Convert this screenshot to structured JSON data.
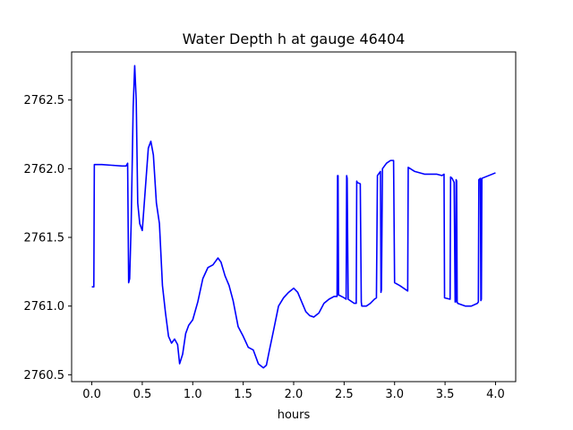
{
  "chart_data": {
    "type": "line",
    "title": "Water Depth h at gauge 46404",
    "xlabel": "hours",
    "ylabel": "",
    "xlim": [
      -0.2,
      4.2
    ],
    "ylim": [
      2760.45,
      2762.85
    ],
    "grid": false,
    "xticks": [
      0.0,
      0.5,
      1.0,
      1.5,
      2.0,
      2.5,
      3.0,
      3.5,
      4.0
    ],
    "xtick_labels": [
      "0.0",
      "0.5",
      "1.0",
      "1.5",
      "2.0",
      "2.5",
      "3.0",
      "3.5",
      "4.0"
    ],
    "yticks": [
      2760.5,
      2761.0,
      2761.5,
      2762.0,
      2762.5
    ],
    "ytick_labels": [
      "2760.5",
      "2761.0",
      "2761.5",
      "2762.0",
      "2762.5"
    ],
    "series": [
      {
        "color": "#0000ff",
        "x": [
          0.0,
          0.02,
          0.025,
          0.03,
          0.1,
          0.2,
          0.3,
          0.34,
          0.355,
          0.365,
          0.375,
          0.39,
          0.41,
          0.425,
          0.44,
          0.455,
          0.475,
          0.5,
          0.53,
          0.56,
          0.585,
          0.61,
          0.64,
          0.67,
          0.7,
          0.73,
          0.76,
          0.79,
          0.82,
          0.85,
          0.87,
          0.9,
          0.93,
          0.96,
          1.0,
          1.05,
          1.1,
          1.15,
          1.2,
          1.25,
          1.28,
          1.32,
          1.36,
          1.4,
          1.45,
          1.5,
          1.55,
          1.6,
          1.65,
          1.7,
          1.73,
          1.76,
          1.8,
          1.85,
          1.9,
          1.95,
          2.0,
          2.04,
          2.08,
          2.12,
          2.16,
          2.2,
          2.25,
          2.3,
          2.35,
          2.4,
          2.43,
          2.435,
          2.44,
          2.445,
          2.45,
          2.5,
          2.52,
          2.525,
          2.53,
          2.54,
          2.6,
          2.62,
          2.625,
          2.63,
          2.66,
          2.67,
          2.675,
          2.72,
          2.76,
          2.8,
          2.82,
          2.83,
          2.84,
          2.86,
          2.865,
          2.87,
          2.88,
          2.92,
          2.96,
          2.99,
          3.0,
          3.05,
          3.13,
          3.135,
          3.2,
          3.3,
          3.42,
          3.47,
          3.49,
          3.495,
          3.55,
          3.555,
          3.57,
          3.59,
          3.6,
          3.605,
          3.61,
          3.615,
          3.62,
          3.625,
          3.7,
          3.76,
          3.82,
          3.83,
          3.835,
          3.85,
          3.855,
          3.86,
          3.865,
          4.0
        ],
        "y": [
          2761.14,
          2761.14,
          2762.03,
          2762.03,
          2762.03,
          2762.025,
          2762.02,
          2762.02,
          2762.04,
          2761.17,
          2761.2,
          2761.6,
          2762.45,
          2762.75,
          2762.5,
          2761.75,
          2761.6,
          2761.55,
          2761.85,
          2762.15,
          2762.2,
          2762.1,
          2761.75,
          2761.6,
          2761.15,
          2760.95,
          2760.78,
          2760.73,
          2760.76,
          2760.72,
          2760.58,
          2760.65,
          2760.8,
          2760.86,
          2760.9,
          2761.03,
          2761.2,
          2761.28,
          2761.3,
          2761.35,
          2761.32,
          2761.22,
          2761.15,
          2761.04,
          2760.85,
          2760.78,
          2760.7,
          2760.68,
          2760.58,
          2760.55,
          2760.57,
          2760.68,
          2760.82,
          2761.0,
          2761.06,
          2761.1,
          2761.13,
          2761.1,
          2761.03,
          2760.96,
          2760.93,
          2760.92,
          2760.95,
          2761.02,
          2761.05,
          2761.07,
          2761.07,
          2761.95,
          2761.95,
          2761.08,
          2761.08,
          2761.06,
          2761.05,
          2761.95,
          2761.93,
          2761.05,
          2761.02,
          2761.02,
          2761.91,
          2761.9,
          2761.89,
          2761.03,
          2761.0,
          2761.0,
          2761.02,
          2761.05,
          2761.06,
          2761.95,
          2761.96,
          2761.98,
          2761.1,
          2761.12,
          2762.0,
          2762.04,
          2762.06,
          2762.06,
          2761.17,
          2761.15,
          2761.11,
          2762.01,
          2761.98,
          2761.96,
          2761.96,
          2761.95,
          2761.96,
          2761.06,
          2761.05,
          2761.94,
          2761.93,
          2761.9,
          2761.03,
          2761.03,
          2761.92,
          2761.91,
          2761.03,
          2761.02,
          2761.0,
          2761.0,
          2761.02,
          2761.03,
          2761.92,
          2761.93,
          2761.04,
          2761.05,
          2761.93,
          2761.97
        ]
      }
    ]
  }
}
